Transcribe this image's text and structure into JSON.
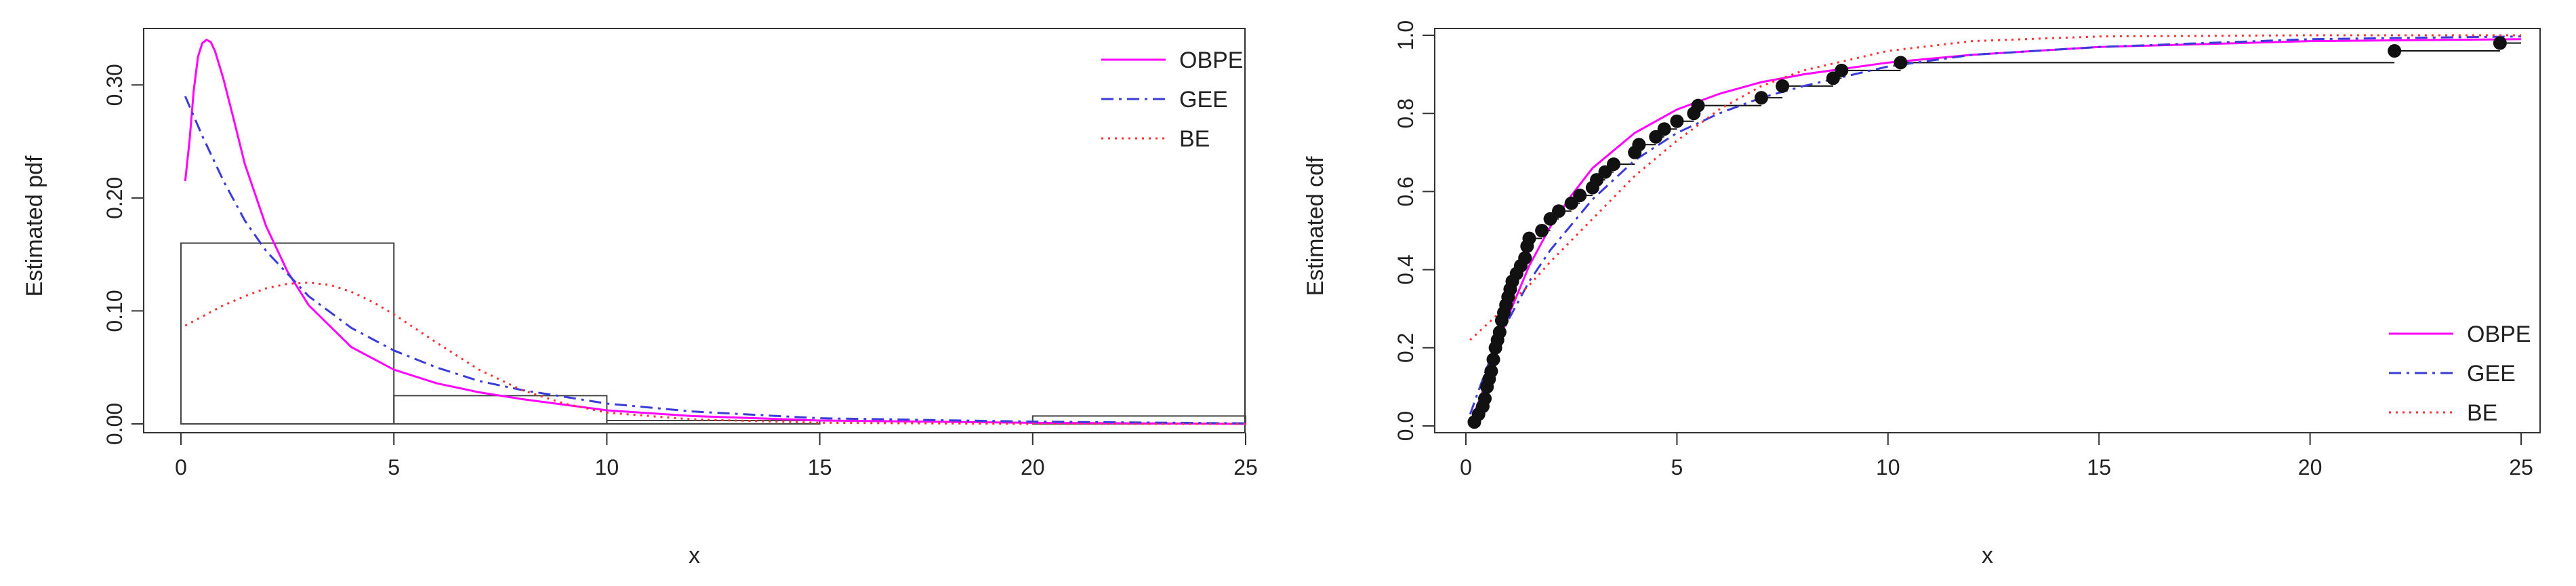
{
  "colors": {
    "OBPE": "#ff00ff",
    "GEE": "#3b3bd9",
    "BE": "#ff3030",
    "axis": "#333333",
    "histogram": "#444444",
    "ecdf": "#111111",
    "ecdf_point": "#111111"
  },
  "chart_data": [
    {
      "type": "histogram+line",
      "xlabel": "x",
      "ylabel": "Estimated pdf",
      "xlim": [
        0,
        25
      ],
      "ylim": [
        0,
        0.35
      ],
      "xticks": [
        0,
        5,
        10,
        15,
        20,
        25
      ],
      "xtick_labels": [
        "0",
        "5",
        "10",
        "15",
        "20",
        "25"
      ],
      "yticks": [
        0.0,
        0.1,
        0.2,
        0.3
      ],
      "ytick_labels": [
        "0.00",
        "0.10",
        "0.20",
        "0.30"
      ],
      "legend_position": "top-right",
      "histogram": {
        "bins": [
          [
            0,
            5
          ],
          [
            5,
            10
          ],
          [
            10,
            15
          ],
          [
            15,
            20
          ],
          [
            20,
            25
          ]
        ],
        "densities": [
          0.16,
          0.025,
          0.003,
          0.0,
          0.007
        ]
      },
      "series": [
        {
          "name": "OBPE",
          "style": "solid",
          "x": [
            0.1,
            0.2,
            0.3,
            0.4,
            0.5,
            0.6,
            0.7,
            0.8,
            1.0,
            1.25,
            1.5,
            2.0,
            2.5,
            3.0,
            4.0,
            5.0,
            6.0,
            7.0,
            8.0,
            10.0,
            12.0,
            15.0,
            20.0,
            25.0
          ],
          "y": [
            0.215,
            0.25,
            0.295,
            0.325,
            0.337,
            0.34,
            0.338,
            0.33,
            0.305,
            0.268,
            0.23,
            0.175,
            0.135,
            0.105,
            0.068,
            0.048,
            0.036,
            0.028,
            0.022,
            0.012,
            0.007,
            0.003,
            0.001,
            0.0
          ]
        },
        {
          "name": "GEE",
          "style": "dashdot",
          "x": [
            0.1,
            0.5,
            1.0,
            1.5,
            2.0,
            3.0,
            4.0,
            5.0,
            6.0,
            7.0,
            8.0,
            10.0,
            12.0,
            15.0,
            20.0,
            25.0
          ],
          "y": [
            0.29,
            0.255,
            0.215,
            0.18,
            0.153,
            0.113,
            0.085,
            0.065,
            0.05,
            0.038,
            0.03,
            0.018,
            0.011,
            0.005,
            0.002,
            0.0005
          ]
        },
        {
          "name": "BE",
          "style": "dotted",
          "x": [
            0.1,
            0.5,
            1.0,
            1.5,
            2.0,
            2.5,
            3.0,
            3.5,
            4.0,
            4.5,
            5.0,
            6.0,
            7.0,
            8.0,
            9.0,
            10.0,
            12.0,
            15.0,
            20.0,
            25.0
          ],
          "y": [
            0.087,
            0.095,
            0.105,
            0.113,
            0.12,
            0.124,
            0.125,
            0.123,
            0.117,
            0.108,
            0.097,
            0.072,
            0.048,
            0.03,
            0.018,
            0.01,
            0.004,
            0.001,
            0.0,
            0.0
          ]
        }
      ]
    },
    {
      "type": "line+scatter",
      "xlabel": "x",
      "ylabel": "Estimated cdf",
      "xlim": [
        0,
        25
      ],
      "ylim": [
        0,
        1
      ],
      "xticks": [
        0,
        5,
        10,
        15,
        20,
        25
      ],
      "xtick_labels": [
        "0",
        "5",
        "10",
        "15",
        "20",
        "25"
      ],
      "yticks": [
        0.0,
        0.2,
        0.4,
        0.6,
        0.8,
        1.0
      ],
      "ytick_labels": [
        "0.0",
        "0.2",
        "0.4",
        "0.6",
        "0.8",
        "1.0"
      ],
      "legend_position": "bottom-right",
      "ecdf_points": {
        "x": [
          0.2,
          0.3,
          0.4,
          0.45,
          0.5,
          0.55,
          0.6,
          0.65,
          0.7,
          0.75,
          0.8,
          0.85,
          0.9,
          0.95,
          1.0,
          1.05,
          1.1,
          1.2,
          1.3,
          1.4,
          1.45,
          1.5,
          1.8,
          2.0,
          2.2,
          2.5,
          2.7,
          3.0,
          3.1,
          3.3,
          3.5,
          4.0,
          4.1,
          4.5,
          4.7,
          5.0,
          5.4,
          5.5,
          7.0,
          7.5,
          8.7,
          8.9,
          10.3,
          22.0,
          24.5
        ],
        "y": [
          0.01,
          0.03,
          0.05,
          0.07,
          0.1,
          0.12,
          0.14,
          0.17,
          0.2,
          0.22,
          0.24,
          0.27,
          0.29,
          0.31,
          0.33,
          0.35,
          0.37,
          0.39,
          0.41,
          0.43,
          0.46,
          0.48,
          0.5,
          0.53,
          0.55,
          0.57,
          0.59,
          0.61,
          0.63,
          0.65,
          0.67,
          0.7,
          0.72,
          0.74,
          0.76,
          0.78,
          0.8,
          0.82,
          0.84,
          0.87,
          0.89,
          0.91,
          0.93,
          0.96,
          0.98
        ]
      },
      "series": [
        {
          "name": "OBPE",
          "style": "solid",
          "x": [
            0.1,
            0.3,
            0.5,
            0.7,
            1.0,
            1.5,
            2.0,
            2.5,
            3.0,
            4.0,
            5.0,
            6.0,
            7.0,
            8.0,
            10.0,
            12.0,
            15.0,
            20.0,
            25.0
          ],
          "y": [
            0.01,
            0.06,
            0.12,
            0.19,
            0.28,
            0.41,
            0.51,
            0.59,
            0.66,
            0.75,
            0.81,
            0.85,
            0.88,
            0.9,
            0.93,
            0.95,
            0.97,
            0.985,
            0.99
          ]
        },
        {
          "name": "GEE",
          "style": "dashdot",
          "x": [
            0.1,
            0.5,
            1.0,
            1.5,
            2.0,
            3.0,
            4.0,
            5.0,
            6.0,
            7.0,
            8.0,
            10.0,
            12.0,
            15.0,
            20.0,
            25.0
          ],
          "y": [
            0.03,
            0.15,
            0.27,
            0.37,
            0.45,
            0.58,
            0.68,
            0.75,
            0.8,
            0.84,
            0.87,
            0.92,
            0.95,
            0.97,
            0.99,
            0.997
          ]
        },
        {
          "name": "BE",
          "style": "dotted",
          "x": [
            0.1,
            0.5,
            1.0,
            1.5,
            2.0,
            3.0,
            4.0,
            5.0,
            6.0,
            7.0,
            8.0,
            10.0,
            12.0,
            15.0,
            20.0,
            25.0
          ],
          "y": [
            0.22,
            0.26,
            0.31,
            0.36,
            0.42,
            0.53,
            0.64,
            0.73,
            0.81,
            0.87,
            0.91,
            0.96,
            0.985,
            0.997,
            1.0,
            1.0
          ]
        }
      ]
    }
  ]
}
